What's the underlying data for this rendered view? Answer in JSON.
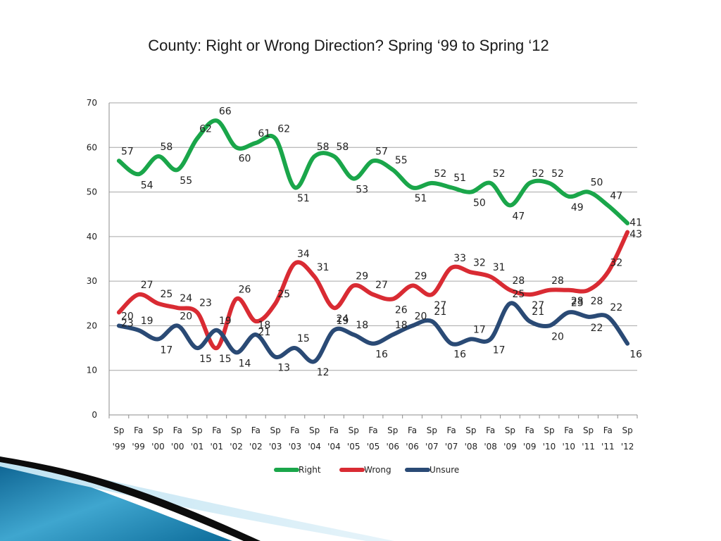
{
  "chart_data": {
    "type": "line",
    "title": "County: Right or Wrong Direction? Spring ‘99 to Spring ‘12",
    "categories": [
      [
        "Sp",
        "'99"
      ],
      [
        "Fa",
        "'99"
      ],
      [
        "Sp",
        "'00"
      ],
      [
        "Fa",
        "'00"
      ],
      [
        "Sp",
        "'01"
      ],
      [
        "Fa",
        "'01"
      ],
      [
        "Sp",
        "'02"
      ],
      [
        "Fa",
        "'02"
      ],
      [
        "Sp",
        "'03"
      ],
      [
        "Fa",
        "'03"
      ],
      [
        "Sp",
        "'04"
      ],
      [
        "Fa",
        "'04"
      ],
      [
        "Sp",
        "'05"
      ],
      [
        "Fa",
        "'05"
      ],
      [
        "Sp",
        "'06"
      ],
      [
        "Fa",
        "'06"
      ],
      [
        "Sp",
        "'07"
      ],
      [
        "Fa",
        "'07"
      ],
      [
        "Sp",
        "'08"
      ],
      [
        "Fa",
        "'08"
      ],
      [
        "Sp",
        "'09"
      ],
      [
        "Fa",
        "'09"
      ],
      [
        "Sp",
        "'10"
      ],
      [
        "Fa",
        "'10"
      ],
      [
        "Sp",
        "'11"
      ],
      [
        "Fa",
        "'11"
      ],
      [
        "Sp",
        "'12"
      ]
    ],
    "ylim": [
      0,
      70
    ],
    "yticks": [
      0,
      10,
      20,
      30,
      40,
      50,
      60,
      70
    ],
    "grid": true,
    "legend_position": "bottom",
    "series": [
      {
        "name": "Right",
        "color": "#1aa64a",
        "values": [
          57,
          54,
          58,
          55,
          62,
          66,
          60,
          61,
          62,
          51,
          58,
          58,
          53,
          57,
          55,
          51,
          52,
          51,
          50,
          52,
          47,
          52,
          52,
          49,
          50,
          47,
          43
        ]
      },
      {
        "name": "Wrong",
        "color": "#d92b33",
        "values": [
          23,
          27,
          25,
          24,
          23,
          15,
          26,
          21,
          25,
          34,
          31,
          24,
          29,
          27,
          26,
          29,
          27,
          33,
          32,
          31,
          28,
          27,
          28,
          28,
          28,
          32,
          41
        ]
      },
      {
        "name": "Unsure",
        "color": "#2a4a75",
        "values": [
          20,
          19,
          17,
          20,
          15,
          19,
          14,
          18,
          13,
          15,
          12,
          19,
          18,
          16,
          18,
          20,
          21,
          16,
          17,
          17,
          25,
          21,
          20,
          23,
          22,
          22,
          16
        ]
      }
    ]
  }
}
